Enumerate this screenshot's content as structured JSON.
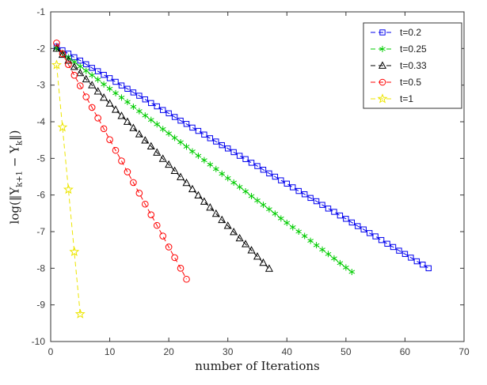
{
  "chart_data": {
    "type": "line",
    "title": "",
    "xlabel": "number of Iterations",
    "ylabel": "log(||Y_k+1 - Y_k||)",
    "ylabel_parts": [
      [
        "t",
        "log(‖Y"
      ],
      [
        "sub",
        "k+1"
      ],
      [
        "t",
        " − Y"
      ],
      [
        "sub",
        "k"
      ],
      [
        "t",
        "‖)"
      ]
    ],
    "xlim": [
      0,
      70
    ],
    "ylim": [
      -10,
      -1
    ],
    "xticks": [
      0,
      10,
      20,
      30,
      40,
      50,
      60,
      70
    ],
    "yticks": [
      -10,
      -9,
      -8,
      -7,
      -6,
      -5,
      -4,
      -3,
      -2,
      -1
    ],
    "grid": false,
    "legend_position": "top-right",
    "axis_color": "#333333",
    "tick_label_color": "#3d3d3d",
    "series": [
      {
        "name": "t=0.2",
        "color": "#0000EE",
        "marker": "square",
        "linestyle": "dashed",
        "x": [
          1,
          2,
          3,
          4,
          5,
          6,
          7,
          8,
          9,
          10,
          11,
          12,
          13,
          14,
          15,
          16,
          17,
          18,
          19,
          20,
          21,
          22,
          23,
          24,
          25,
          26,
          27,
          28,
          29,
          30,
          31,
          32,
          33,
          34,
          35,
          36,
          37,
          38,
          39,
          40,
          41,
          42,
          43,
          44,
          45,
          46,
          47,
          48,
          49,
          50,
          51,
          52,
          53,
          54,
          55,
          56,
          57,
          58,
          59,
          60,
          61,
          62,
          63,
          64
        ],
        "y": [
          -1.95,
          -2.05,
          -2.14,
          -2.24,
          -2.33,
          -2.43,
          -2.53,
          -2.62,
          -2.72,
          -2.81,
          -2.91,
          -3.01,
          -3.1,
          -3.2,
          -3.29,
          -3.39,
          -3.49,
          -3.58,
          -3.68,
          -3.77,
          -3.87,
          -3.97,
          -4.06,
          -4.16,
          -4.25,
          -4.35,
          -4.45,
          -4.54,
          -4.64,
          -4.73,
          -4.83,
          -4.93,
          -5.02,
          -5.12,
          -5.21,
          -5.31,
          -5.41,
          -5.5,
          -5.6,
          -5.69,
          -5.79,
          -5.89,
          -5.98,
          -6.08,
          -6.17,
          -6.27,
          -6.37,
          -6.46,
          -6.56,
          -6.65,
          -6.75,
          -6.85,
          -6.94,
          -7.04,
          -7.13,
          -7.23,
          -7.33,
          -7.42,
          -7.52,
          -7.61,
          -7.71,
          -7.81,
          -7.9,
          -8.0
        ]
      },
      {
        "name": "t=0.25",
        "color": "#00CC00",
        "marker": "asterisk",
        "linestyle": "dashed",
        "x": [
          1,
          2,
          3,
          4,
          5,
          6,
          7,
          8,
          9,
          10,
          11,
          12,
          13,
          14,
          15,
          16,
          17,
          18,
          19,
          20,
          21,
          22,
          23,
          24,
          25,
          26,
          27,
          28,
          29,
          30,
          31,
          32,
          33,
          34,
          35,
          36,
          37,
          38,
          39,
          40,
          41,
          42,
          43,
          44,
          45,
          46,
          47,
          48,
          49,
          50,
          51
        ],
        "y": [
          -2.0,
          -2.12,
          -2.24,
          -2.37,
          -2.49,
          -2.61,
          -2.73,
          -2.85,
          -2.98,
          -3.1,
          -3.22,
          -3.34,
          -3.46,
          -3.59,
          -3.71,
          -3.83,
          -3.95,
          -4.07,
          -4.2,
          -4.32,
          -4.44,
          -4.56,
          -4.68,
          -4.81,
          -4.93,
          -5.05,
          -5.17,
          -5.29,
          -5.42,
          -5.54,
          -5.66,
          -5.78,
          -5.9,
          -6.03,
          -6.15,
          -6.27,
          -6.39,
          -6.51,
          -6.64,
          -6.76,
          -6.88,
          -7.0,
          -7.12,
          -7.25,
          -7.37,
          -7.49,
          -7.61,
          -7.73,
          -7.86,
          -7.98,
          -8.1
        ]
      },
      {
        "name": "t=0.33",
        "color": "#000000",
        "marker": "triangle",
        "linestyle": "dashed",
        "x": [
          1,
          2,
          3,
          4,
          5,
          6,
          7,
          8,
          9,
          10,
          11,
          12,
          13,
          14,
          15,
          16,
          17,
          18,
          19,
          20,
          21,
          22,
          23,
          24,
          25,
          26,
          27,
          28,
          29,
          30,
          31,
          32,
          33,
          34,
          35,
          36,
          37
        ],
        "y": [
          -2.0,
          -2.17,
          -2.33,
          -2.5,
          -2.67,
          -2.84,
          -3.0,
          -3.17,
          -3.34,
          -3.5,
          -3.67,
          -3.84,
          -4.0,
          -4.17,
          -4.34,
          -4.51,
          -4.67,
          -4.84,
          -5.01,
          -5.17,
          -5.34,
          -5.51,
          -5.67,
          -5.84,
          -6.01,
          -6.18,
          -6.34,
          -6.51,
          -6.68,
          -6.84,
          -7.01,
          -7.18,
          -7.34,
          -7.51,
          -7.68,
          -7.85,
          -8.01
        ]
      },
      {
        "name": "t=0.5",
        "color": "#FF0000",
        "marker": "circle",
        "linestyle": "dashed",
        "x": [
          1,
          2,
          3,
          4,
          5,
          6,
          7,
          8,
          9,
          10,
          11,
          12,
          13,
          14,
          15,
          16,
          17,
          18,
          19,
          20,
          21,
          22,
          23
        ],
        "y": [
          -1.85,
          -2.14,
          -2.44,
          -2.73,
          -3.02,
          -3.32,
          -3.61,
          -3.9,
          -4.19,
          -4.49,
          -4.78,
          -5.07,
          -5.37,
          -5.66,
          -5.95,
          -6.25,
          -6.54,
          -6.83,
          -7.12,
          -7.42,
          -7.71,
          -8.0,
          -8.3
        ]
      },
      {
        "name": "t=1",
        "color": "#EDE600",
        "marker": "pentagram",
        "linestyle": "dashed",
        "x": [
          1,
          2,
          3,
          4,
          5
        ],
        "y": [
          -2.45,
          -4.15,
          -5.85,
          -7.55,
          -9.25
        ]
      }
    ]
  }
}
